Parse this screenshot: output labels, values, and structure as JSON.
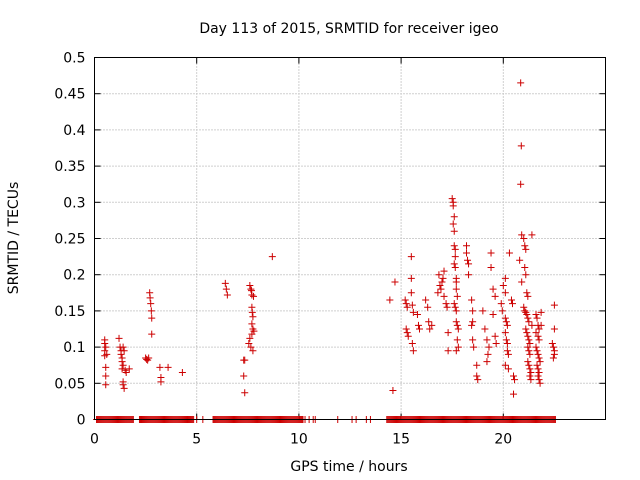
{
  "chart_data": {
    "type": "scatter",
    "title": "Day 113 of 2015, SRMTID for receiver igeo",
    "xlabel": "GPS time / hours",
    "ylabel": "SRMTID / TECUs",
    "xlim": [
      0,
      25
    ],
    "ylim": [
      0,
      0.5
    ],
    "x_ticks": [
      0,
      5,
      10,
      15,
      20
    ],
    "x_tick_labels": [
      "0",
      "5",
      "10",
      "15",
      "20"
    ],
    "y_ticks": [
      0,
      0.05,
      0.1,
      0.15,
      0.2,
      0.25,
      0.3,
      0.35,
      0.4,
      0.45,
      0.5
    ],
    "y_tick_labels": [
      "0",
      "0.05",
      "0.1",
      "0.15",
      "0.2",
      "0.25",
      "0.3",
      "0.35",
      "0.4",
      "0.45",
      "0.5"
    ],
    "grid": true,
    "marker": "+",
    "color": "#cc0000",
    "series": [
      {
        "name": "SRMTID",
        "points": [
          [
            0.5,
            0.105
          ],
          [
            0.5,
            0.095
          ],
          [
            0.5,
            0.088
          ],
          [
            0.55,
            0.1
          ],
          [
            0.55,
            0.072
          ],
          [
            0.55,
            0.06
          ],
          [
            0.55,
            0.048
          ],
          [
            0.5,
            0.11
          ],
          [
            0.6,
            0.09
          ],
          [
            1.2,
            0.112
          ],
          [
            1.25,
            0.1
          ],
          [
            1.3,
            0.095
          ],
          [
            1.3,
            0.09
          ],
          [
            1.35,
            0.085
          ],
          [
            1.35,
            0.08
          ],
          [
            1.4,
            0.075
          ],
          [
            1.4,
            0.1
          ],
          [
            1.45,
            0.095
          ],
          [
            1.35,
            0.07
          ],
          [
            1.4,
            0.052
          ],
          [
            1.4,
            0.048
          ],
          [
            1.45,
            0.043
          ],
          [
            1.5,
            0.068
          ],
          [
            1.7,
            0.07
          ],
          [
            1.55,
            0.065
          ],
          [
            2.5,
            0.085
          ],
          [
            2.55,
            0.083
          ],
          [
            2.6,
            0.082
          ],
          [
            2.65,
            0.085
          ],
          [
            2.7,
            0.175
          ],
          [
            2.72,
            0.168
          ],
          [
            2.75,
            0.16
          ],
          [
            2.78,
            0.15
          ],
          [
            2.8,
            0.14
          ],
          [
            2.8,
            0.118
          ],
          [
            3.2,
            0.072
          ],
          [
            3.25,
            0.058
          ],
          [
            3.25,
            0.052
          ],
          [
            3.6,
            0.072
          ],
          [
            4.3,
            0.065
          ],
          [
            6.4,
            0.188
          ],
          [
            6.45,
            0.18
          ],
          [
            6.5,
            0.172
          ],
          [
            7.3,
            0.082
          ],
          [
            7.35,
            0.082
          ],
          [
            7.3,
            0.06
          ],
          [
            7.35,
            0.037
          ],
          [
            7.55,
            0.105
          ],
          [
            7.6,
            0.112
          ],
          [
            7.6,
            0.185
          ],
          [
            7.65,
            0.18
          ],
          [
            7.68,
            0.178
          ],
          [
            7.7,
            0.172
          ],
          [
            7.7,
            0.155
          ],
          [
            7.72,
            0.148
          ],
          [
            7.75,
            0.142
          ],
          [
            7.7,
            0.132
          ],
          [
            7.75,
            0.125
          ],
          [
            7.8,
            0.122
          ],
          [
            7.7,
            0.118
          ],
          [
            7.65,
            0.1
          ],
          [
            7.75,
            0.095
          ],
          [
            7.78,
            0.17
          ],
          [
            8.7,
            0.225
          ],
          [
            14.45,
            0.165
          ],
          [
            14.6,
            0.04
          ],
          [
            14.7,
            0.19
          ],
          [
            15.2,
            0.165
          ],
          [
            15.25,
            0.16
          ],
          [
            15.3,
            0.155
          ],
          [
            15.25,
            0.125
          ],
          [
            15.3,
            0.12
          ],
          [
            15.35,
            0.115
          ],
          [
            15.5,
            0.225
          ],
          [
            15.5,
            0.195
          ],
          [
            15.5,
            0.175
          ],
          [
            15.55,
            0.158
          ],
          [
            15.6,
            0.148
          ],
          [
            15.55,
            0.105
          ],
          [
            15.6,
            0.095
          ],
          [
            15.8,
            0.145
          ],
          [
            15.85,
            0.13
          ],
          [
            15.9,
            0.125
          ],
          [
            16.2,
            0.165
          ],
          [
            16.3,
            0.155
          ],
          [
            16.35,
            0.135
          ],
          [
            16.4,
            0.125
          ],
          [
            16.5,
            0.13
          ],
          [
            16.8,
            0.175
          ],
          [
            16.85,
            0.2
          ],
          [
            16.9,
            0.185
          ],
          [
            16.95,
            0.18
          ],
          [
            17.0,
            0.19
          ],
          [
            17.05,
            0.195
          ],
          [
            17.1,
            0.205
          ],
          [
            17.1,
            0.17
          ],
          [
            17.2,
            0.16
          ],
          [
            17.25,
            0.155
          ],
          [
            17.3,
            0.12
          ],
          [
            17.3,
            0.095
          ],
          [
            17.5,
            0.305
          ],
          [
            17.55,
            0.3
          ],
          [
            17.55,
            0.295
          ],
          [
            17.6,
            0.28
          ],
          [
            17.55,
            0.27
          ],
          [
            17.6,
            0.26
          ],
          [
            17.6,
            0.24
          ],
          [
            17.65,
            0.235
          ],
          [
            17.65,
            0.225
          ],
          [
            17.6,
            0.215
          ],
          [
            17.65,
            0.21
          ],
          [
            17.7,
            0.195
          ],
          [
            17.7,
            0.19
          ],
          [
            17.7,
            0.18
          ],
          [
            17.75,
            0.17
          ],
          [
            17.6,
            0.16
          ],
          [
            17.65,
            0.155
          ],
          [
            17.7,
            0.15
          ],
          [
            17.75,
            0.13
          ],
          [
            17.8,
            0.125
          ],
          [
            17.75,
            0.11
          ],
          [
            17.8,
            0.1
          ],
          [
            17.7,
            0.095
          ],
          [
            17.7,
            0.135
          ],
          [
            18.2,
            0.24
          ],
          [
            18.2,
            0.23
          ],
          [
            18.25,
            0.22
          ],
          [
            18.3,
            0.215
          ],
          [
            18.3,
            0.2
          ],
          [
            18.45,
            0.165
          ],
          [
            18.5,
            0.15
          ],
          [
            18.5,
            0.135
          ],
          [
            18.45,
            0.13
          ],
          [
            18.5,
            0.11
          ],
          [
            18.55,
            0.1
          ],
          [
            18.7,
            0.075
          ],
          [
            18.7,
            0.06
          ],
          [
            18.75,
            0.055
          ],
          [
            19.0,
            0.15
          ],
          [
            19.1,
            0.125
          ],
          [
            19.2,
            0.11
          ],
          [
            19.3,
            0.1
          ],
          [
            19.25,
            0.09
          ],
          [
            19.2,
            0.08
          ],
          [
            19.4,
            0.23
          ],
          [
            19.4,
            0.21
          ],
          [
            19.5,
            0.18
          ],
          [
            19.6,
            0.17
          ],
          [
            19.6,
            0.115
          ],
          [
            19.65,
            0.105
          ],
          [
            19.5,
            0.145
          ],
          [
            19.9,
            0.16
          ],
          [
            19.95,
            0.15
          ],
          [
            20.0,
            0.185
          ],
          [
            20.1,
            0.195
          ],
          [
            20.1,
            0.175
          ],
          [
            20.1,
            0.14
          ],
          [
            20.15,
            0.135
          ],
          [
            20.2,
            0.13
          ],
          [
            20.1,
            0.12
          ],
          [
            20.15,
            0.11
          ],
          [
            20.2,
            0.105
          ],
          [
            20.2,
            0.095
          ],
          [
            20.25,
            0.09
          ],
          [
            20.1,
            0.075
          ],
          [
            20.25,
            0.07
          ],
          [
            20.3,
            0.23
          ],
          [
            20.4,
            0.165
          ],
          [
            20.45,
            0.16
          ],
          [
            20.5,
            0.06
          ],
          [
            20.55,
            0.055
          ],
          [
            20.5,
            0.035
          ],
          [
            20.85,
            0.465
          ],
          [
            20.88,
            0.378
          ],
          [
            20.85,
            0.325
          ],
          [
            20.9,
            0.255
          ],
          [
            20.8,
            0.22
          ],
          [
            20.9,
            0.19
          ],
          [
            21.0,
            0.25
          ],
          [
            21.05,
            0.24
          ],
          [
            21.1,
            0.235
          ],
          [
            21.05,
            0.21
          ],
          [
            21.1,
            0.2
          ],
          [
            21.15,
            0.175
          ],
          [
            21.2,
            0.17
          ],
          [
            21.0,
            0.155
          ],
          [
            21.05,
            0.15
          ],
          [
            21.1,
            0.148
          ],
          [
            21.15,
            0.145
          ],
          [
            21.2,
            0.14
          ],
          [
            21.25,
            0.135
          ],
          [
            21.1,
            0.125
          ],
          [
            21.15,
            0.12
          ],
          [
            21.2,
            0.115
          ],
          [
            21.25,
            0.11
          ],
          [
            21.3,
            0.105
          ],
          [
            21.2,
            0.1
          ],
          [
            21.25,
            0.095
          ],
          [
            21.3,
            0.09
          ],
          [
            21.2,
            0.08
          ],
          [
            21.25,
            0.075
          ],
          [
            21.3,
            0.07
          ],
          [
            21.35,
            0.065
          ],
          [
            21.3,
            0.06
          ],
          [
            21.35,
            0.055
          ],
          [
            21.4,
            0.255
          ],
          [
            21.4,
            0.13
          ],
          [
            21.6,
            0.145
          ],
          [
            21.65,
            0.14
          ],
          [
            21.7,
            0.13
          ],
          [
            21.75,
            0.125
          ],
          [
            21.6,
            0.12
          ],
          [
            21.7,
            0.115
          ],
          [
            21.75,
            0.11
          ],
          [
            21.6,
            0.1
          ],
          [
            21.65,
            0.095
          ],
          [
            21.7,
            0.09
          ],
          [
            21.75,
            0.085
          ],
          [
            21.8,
            0.08
          ],
          [
            21.65,
            0.075
          ],
          [
            21.7,
            0.07
          ],
          [
            21.75,
            0.065
          ],
          [
            21.7,
            0.06
          ],
          [
            21.75,
            0.055
          ],
          [
            21.8,
            0.05
          ],
          [
            21.85,
            0.148
          ],
          [
            21.85,
            0.13
          ],
          [
            22.4,
            0.105
          ],
          [
            22.45,
            0.1
          ],
          [
            22.5,
            0.095
          ],
          [
            22.5,
            0.09
          ],
          [
            22.45,
            0.085
          ],
          [
            22.5,
            0.125
          ],
          [
            22.5,
            0.158
          ]
        ]
      }
    ],
    "zero_baseline_x": [
      0.1,
      0.15,
      0.2,
      0.25,
      0.3,
      0.35,
      0.4,
      0.45,
      0.5,
      0.55,
      0.6,
      0.65,
      0.7,
      0.75,
      0.8,
      0.85,
      0.9,
      0.95,
      1.0,
      1.05,
      1.1,
      1.15,
      1.2,
      1.25,
      1.3,
      1.35,
      1.4,
      1.45,
      1.5,
      1.55,
      1.6,
      1.65,
      1.7,
      1.75,
      1.8,
      1.85,
      1.9,
      2.2,
      2.25,
      2.3,
      2.35,
      2.4,
      2.45,
      2.5,
      2.55,
      2.6,
      2.65,
      2.7,
      2.75,
      2.8,
      2.85,
      2.9,
      2.95,
      3.0,
      3.05,
      3.1,
      3.15,
      3.2,
      3.25,
      3.3,
      3.35,
      3.4,
      3.45,
      3.5,
      3.55,
      3.6,
      3.65,
      3.7,
      3.75,
      3.8,
      3.85,
      3.9,
      3.95,
      4.0,
      4.05,
      4.1,
      4.15,
      4.2,
      4.25,
      4.3,
      4.35,
      4.4,
      4.45,
      4.5,
      4.55,
      4.6,
      4.65,
      4.7,
      4.75,
      4.8,
      4.85,
      5.0,
      5.3,
      5.8,
      5.85,
      5.9,
      5.95,
      6.0,
      6.05,
      6.1,
      6.15,
      6.2,
      6.25,
      6.3,
      6.35,
      6.4,
      6.45,
      6.5,
      6.55,
      6.6,
      6.65,
      6.7,
      6.75,
      6.8,
      6.85,
      6.9,
      6.95,
      7.0,
      7.05,
      7.1,
      7.15,
      7.2,
      7.25,
      7.3,
      7.35,
      7.4,
      7.45,
      7.5,
      7.55,
      7.6,
      7.65,
      7.7,
      7.75,
      7.8,
      7.85,
      7.9,
      7.95,
      8.0,
      8.05,
      8.1,
      8.15,
      8.2,
      8.25,
      8.3,
      8.35,
      8.4,
      8.45,
      8.5,
      8.55,
      8.6,
      8.65,
      8.7,
      8.75,
      8.8,
      8.85,
      8.9,
      8.95,
      9.0,
      9.05,
      9.1,
      9.15,
      9.2,
      9.25,
      9.3,
      9.35,
      9.4,
      9.45,
      9.5,
      9.55,
      9.6,
      9.65,
      9.7,
      9.75,
      9.8,
      9.85,
      9.9,
      9.95,
      10.0,
      10.05,
      10.1,
      10.15,
      10.2,
      10.3,
      10.5,
      10.7,
      10.8,
      11.9,
      12.6,
      12.8,
      13.3,
      13.5,
      14.3,
      14.35,
      14.4,
      14.45,
      14.5,
      14.55,
      14.6,
      14.65,
      14.7,
      14.75,
      14.8,
      14.85,
      14.9,
      14.95,
      15.0,
      15.05,
      15.1,
      15.15,
      15.2,
      15.25,
      15.3,
      15.35,
      15.4,
      15.45,
      15.5,
      15.55,
      15.6,
      15.65,
      15.7,
      15.75,
      15.8,
      15.85,
      15.9,
      15.95,
      16.0,
      16.05,
      16.1,
      16.15,
      16.2,
      16.25,
      16.3,
      16.35,
      16.4,
      16.45,
      16.5,
      16.55,
      16.6,
      16.65,
      16.7,
      16.75,
      16.8,
      16.85,
      16.9,
      16.95,
      17.0,
      17.05,
      17.1,
      17.15,
      17.2,
      17.25,
      17.3,
      17.35,
      17.4,
      17.45,
      17.5,
      17.55,
      17.6,
      17.65,
      17.7,
      17.75,
      17.8,
      17.85,
      17.9,
      17.95,
      18.0,
      18.05,
      18.1,
      18.15,
      18.2,
      18.25,
      18.3,
      18.35,
      18.4,
      18.45,
      18.5,
      18.55,
      18.6,
      18.65,
      18.7,
      18.75,
      18.8,
      18.85,
      18.9,
      18.95,
      19.0,
      19.05,
      19.1,
      19.15,
      19.2,
      19.25,
      19.3,
      19.35,
      19.4,
      19.45,
      19.5,
      19.55,
      19.6,
      19.65,
      19.7,
      19.75,
      19.8,
      19.85,
      19.9,
      19.95,
      20.0,
      20.05,
      20.1,
      20.15,
      20.2,
      20.25,
      20.3,
      20.35,
      20.4,
      20.45,
      20.5,
      20.55,
      20.6,
      20.65,
      20.7,
      20.75,
      20.8,
      20.85,
      20.9,
      20.95,
      21.0,
      21.05,
      21.1,
      21.15,
      21.2,
      21.25,
      21.3,
      21.35,
      21.4,
      21.45,
      21.5,
      21.55,
      21.6,
      21.65,
      21.7,
      21.75,
      21.8,
      21.85,
      21.9,
      21.95,
      22.0,
      22.05,
      22.1,
      22.15,
      22.2,
      22.25,
      22.3,
      22.35,
      22.4,
      22.45,
      22.5,
      22.55
    ]
  }
}
